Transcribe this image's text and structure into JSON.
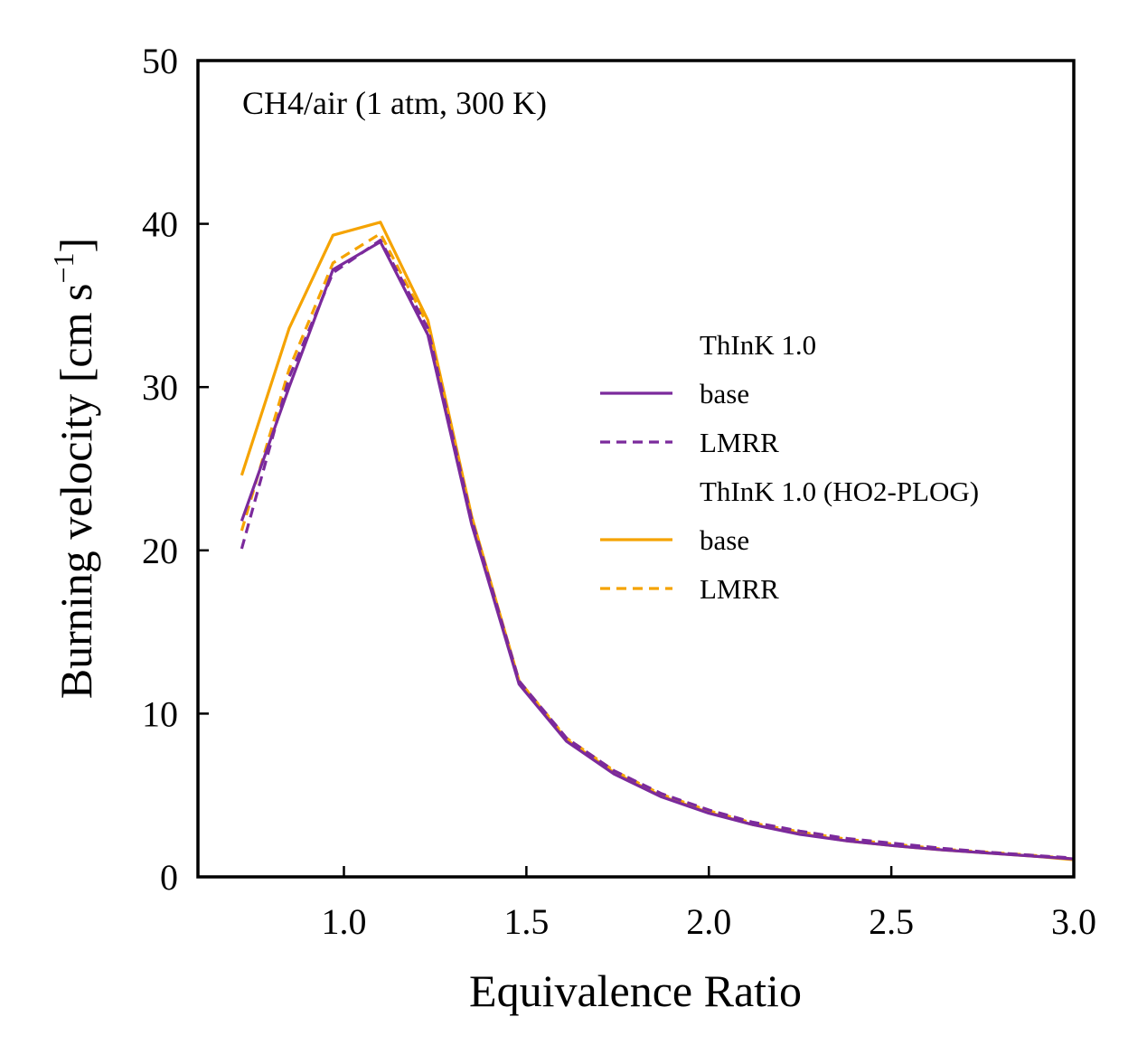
{
  "chart_data": {
    "type": "line",
    "annotation": "CH4/air (1 atm, 300 K)",
    "xlabel": "Equivalence Ratio",
    "ylabel_main": "Burning velocity [cm s",
    "ylabel_sup": "−1",
    "ylabel_close": "]",
    "xlim": [
      0.6,
      3.0
    ],
    "ylim": [
      0,
      50
    ],
    "xticks": [
      1.0,
      1.5,
      2.0,
      2.5,
      3.0
    ],
    "xtick_labels": [
      "1.0",
      "1.5",
      "2.0",
      "2.5",
      "3.0"
    ],
    "yticks": [
      0,
      10,
      20,
      30,
      40,
      50
    ],
    "ytick_labels": [
      "0",
      "10",
      "20",
      "30",
      "40",
      "50"
    ],
    "grid": false,
    "legend_position": "center-right",
    "legend_groups": [
      {
        "title": "ThInK 1.0",
        "entries": [
          "base",
          "LMRR"
        ]
      },
      {
        "title": "ThInK 1.0 (HO2-PLOG)",
        "entries": [
          "base",
          "LMRR"
        ]
      }
    ],
    "x": [
      0.72,
      0.85,
      0.97,
      1.1,
      1.23,
      1.35,
      1.48,
      1.61,
      1.74,
      1.87,
      2.0,
      2.12,
      2.25,
      2.38,
      2.51,
      2.64,
      2.77,
      2.9,
      3.0
    ],
    "series": [
      {
        "name": "base",
        "group": "ThInK 1.0",
        "color": "#7b2a9c",
        "dash": "solid",
        "values": [
          21.8,
          30.0,
          37.2,
          38.9,
          33.2,
          21.6,
          11.8,
          8.3,
          6.3,
          4.9,
          3.9,
          3.2,
          2.6,
          2.2,
          1.9,
          1.65,
          1.45,
          1.25,
          1.1
        ]
      },
      {
        "name": "LMRR",
        "group": "ThInK 1.0",
        "color": "#7b2a9c",
        "dash": "dashed",
        "values": [
          20.1,
          30.6,
          37.0,
          39.0,
          33.6,
          21.9,
          12.0,
          8.5,
          6.5,
          5.1,
          4.1,
          3.35,
          2.8,
          2.35,
          2.05,
          1.75,
          1.5,
          1.3,
          1.15
        ]
      },
      {
        "name": "base",
        "group": "ThInK 1.0 (HO2-PLOG)",
        "color": "#f5a300",
        "dash": "solid",
        "values": [
          24.6,
          33.6,
          39.3,
          40.1,
          34.1,
          22.1,
          12.0,
          8.4,
          6.4,
          4.95,
          3.95,
          3.2,
          2.65,
          2.2,
          1.9,
          1.65,
          1.45,
          1.25,
          1.05
        ]
      },
      {
        "name": "LMRR",
        "group": "ThInK 1.0 (HO2-PLOG)",
        "color": "#f5a300",
        "dash": "dashed",
        "values": [
          21.2,
          31.1,
          37.6,
          39.4,
          33.8,
          22.0,
          12.0,
          8.5,
          6.5,
          5.05,
          4.05,
          3.3,
          2.75,
          2.3,
          2.0,
          1.7,
          1.5,
          1.3,
          1.1
        ]
      }
    ]
  }
}
